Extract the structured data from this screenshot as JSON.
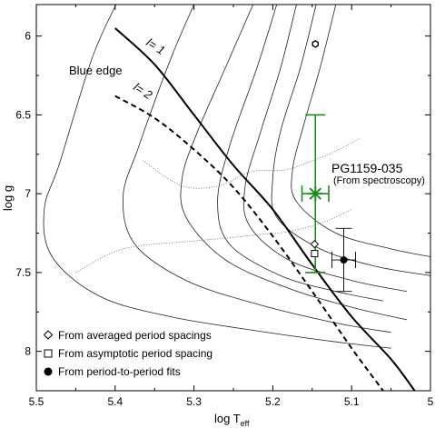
{
  "chart_data": {
    "type": "scatter",
    "xlabel_main": "log T",
    "xlabel_sub": "eff",
    "ylabel": "log g",
    "xlim": [
      5.5,
      5.0
    ],
    "ylim": [
      8.25,
      5.8
    ],
    "x_ticks": [
      5.5,
      5.4,
      5.3,
      5.2,
      5.1,
      5.0
    ],
    "x_tick_labels": [
      "5.5",
      "5.4",
      "5.3",
      "5.2",
      "5.1",
      "5"
    ],
    "y_ticks": [
      6.0,
      6.5,
      7.0,
      7.5,
      8.0
    ],
    "y_tick_labels": [
      "6",
      "6.5",
      "7",
      "7.5",
      "8"
    ],
    "grid": false,
    "tracks": [
      [
        [
          5.399,
          5.8
        ],
        [
          5.43,
          6.15
        ],
        [
          5.47,
          6.8
        ],
        [
          5.49,
          7.1
        ],
        [
          5.48,
          7.4
        ],
        [
          5.42,
          7.65
        ],
        [
          5.33,
          7.78
        ],
        [
          5.22,
          7.87
        ],
        [
          5.12,
          7.94
        ],
        [
          5.05,
          7.98
        ]
      ],
      [
        [
          5.3,
          5.8
        ],
        [
          5.33,
          6.15
        ],
        [
          5.37,
          6.7
        ],
        [
          5.39,
          7.02
        ],
        [
          5.375,
          7.32
        ],
        [
          5.31,
          7.55
        ],
        [
          5.22,
          7.7
        ],
        [
          5.12,
          7.82
        ],
        [
          5.05,
          7.88
        ]
      ],
      [
        [
          5.225,
          5.8
        ],
        [
          5.26,
          6.2
        ],
        [
          5.295,
          6.6
        ],
        [
          5.315,
          6.9
        ],
        [
          5.31,
          7.15
        ],
        [
          5.26,
          7.42
        ],
        [
          5.18,
          7.6
        ],
        [
          5.1,
          7.72
        ],
        [
          5.03,
          7.8
        ]
      ],
      [
        [
          5.195,
          5.8
        ],
        [
          5.22,
          6.2
        ],
        [
          5.255,
          6.7
        ],
        [
          5.27,
          7.05
        ],
        [
          5.255,
          7.32
        ],
        [
          5.19,
          7.52
        ],
        [
          5.12,
          7.62
        ],
        [
          5.06,
          7.68
        ]
      ],
      [
        [
          5.17,
          5.8
        ],
        [
          5.19,
          6.2
        ],
        [
          5.215,
          6.6
        ],
        [
          5.235,
          6.95
        ],
        [
          5.23,
          7.2
        ],
        [
          5.18,
          7.42
        ],
        [
          5.1,
          7.55
        ],
        [
          5.03,
          7.62
        ]
      ],
      [
        [
          5.145,
          5.8
        ],
        [
          5.165,
          6.2
        ],
        [
          5.19,
          6.6
        ],
        [
          5.2,
          6.9
        ],
        [
          5.195,
          7.15
        ],
        [
          5.14,
          7.35
        ],
        [
          5.07,
          7.46
        ],
        [
          5.0,
          7.52
        ]
      ],
      [
        [
          5.12,
          5.8
        ],
        [
          5.14,
          6.2
        ],
        [
          5.16,
          6.55
        ],
        [
          5.175,
          6.85
        ],
        [
          5.17,
          7.05
        ],
        [
          5.12,
          7.25
        ],
        [
          5.05,
          7.35
        ],
        [
          5.0,
          7.4
        ]
      ]
    ],
    "isochrones": [
      [
        [
          5.365,
          6.79
        ],
        [
          5.315,
          6.95
        ],
        [
          5.268,
          6.95
        ],
        [
          5.228,
          6.86
        ],
        [
          5.185,
          6.85
        ],
        [
          5.155,
          6.8
        ],
        [
          5.12,
          6.73
        ],
        [
          5.09,
          6.65
        ]
      ],
      [
        [
          5.45,
          7.5
        ],
        [
          5.39,
          7.35
        ],
        [
          5.3,
          7.3
        ],
        [
          5.255,
          7.28
        ],
        [
          5.22,
          7.26
        ],
        [
          5.18,
          7.24
        ],
        [
          5.135,
          7.18
        ],
        [
          5.1,
          7.1
        ]
      ]
    ],
    "blue_edges": [
      {
        "label": "l= 1",
        "style": "solid",
        "points": [
          [
            5.4,
            5.95
          ],
          [
            5.35,
            6.18
          ],
          [
            5.3,
            6.5
          ],
          [
            5.25,
            6.82
          ],
          [
            5.2,
            7.1
          ],
          [
            5.15,
            7.45
          ],
          [
            5.1,
            7.78
          ],
          [
            5.05,
            8.05
          ],
          [
            5.02,
            8.25
          ]
        ]
      },
      {
        "label": "l= 2",
        "style": "dashed",
        "points": [
          [
            5.4,
            6.38
          ],
          [
            5.35,
            6.52
          ],
          [
            5.3,
            6.72
          ],
          [
            5.25,
            6.96
          ],
          [
            5.2,
            7.27
          ],
          [
            5.15,
            7.62
          ],
          [
            5.1,
            7.98
          ],
          [
            5.06,
            8.25
          ]
        ]
      }
    ],
    "blue_edge_label": "Blue edge",
    "target": {
      "name": "PG1159-035",
      "note": "(From spectroscopy)",
      "x": 5.146,
      "y": 7.0,
      "x_err": 0.017,
      "y_err": 0.5,
      "color": "#1a8c1a"
    },
    "series": [
      {
        "name": "From averaged period spacings",
        "marker": "diamond",
        "x": 5.147,
        "y": 7.32
      },
      {
        "name": "From asymptotic period spacing",
        "marker": "square",
        "x": 5.147,
        "y": 7.38
      },
      {
        "name": "From period-to-period fits",
        "marker": "circle",
        "x": 5.11,
        "y": 7.42,
        "x_err": 0.015,
        "y_err": 0.2
      }
    ],
    "extra_points": [
      {
        "marker": "hex",
        "x": 5.146,
        "y": 6.05
      }
    ],
    "legend_position": "bottom-left"
  }
}
